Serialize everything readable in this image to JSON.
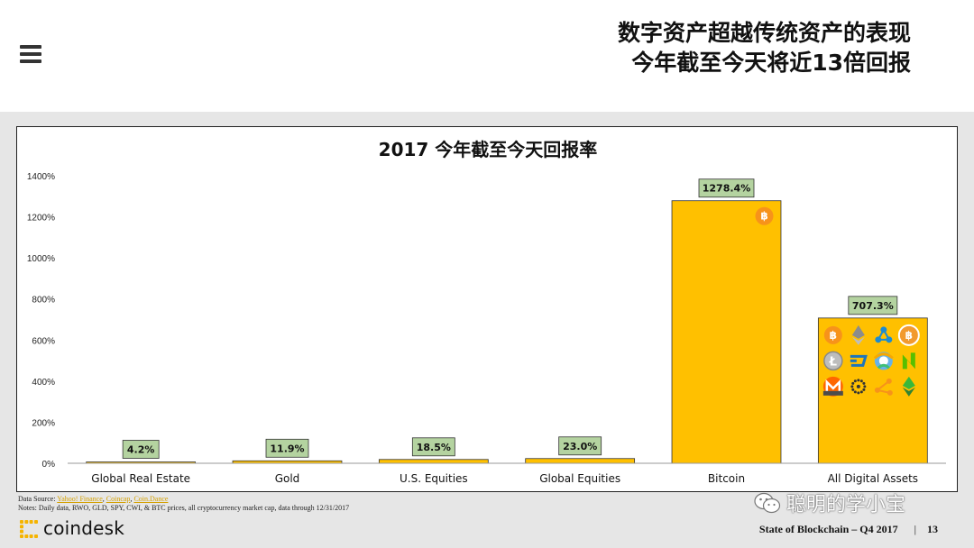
{
  "header": {
    "title_line1": "数字资产超越传统资产的表现",
    "title_line2": "今年截至今天将近13倍回报"
  },
  "chart_data": {
    "type": "bar",
    "title": "2017 今年截至今天回报率",
    "categories": [
      "Global Real Estate",
      "Gold",
      "U.S. Equities",
      "Global Equities",
      "Bitcoin",
      "All Digital Assets"
    ],
    "values": [
      4.2,
      11.9,
      18.5,
      23.0,
      1278.4,
      707.3
    ],
    "value_labels": [
      "4.2%",
      "11.9%",
      "18.5%",
      "23.0%",
      "1278.4%",
      "707.3%"
    ],
    "y_ticks": [
      "0%",
      "200%",
      "400%",
      "600%",
      "800%",
      "1000%",
      "1200%",
      "1400%"
    ],
    "ylim": [
      0,
      1400
    ],
    "xlabel": "",
    "ylabel": "",
    "grid": false,
    "colors": {
      "bar": "#ffc000",
      "label_box": "#b4d3a0"
    }
  },
  "coin_icons": [
    "bitcoin-icon",
    "ethereum-icon",
    "ripple-icon",
    "bitcoin-cash-icon",
    "litecoin-icon",
    "dash-icon",
    "nem-icon",
    "neo-icon",
    "monero-icon",
    "iota-icon",
    "bitconnect-icon",
    "ethereum-classic-icon"
  ],
  "source": {
    "prefix": "Data Source: ",
    "link1": "Yahoo! Finance",
    "link2": "Coincap",
    "link3": "Coin.Dance",
    "notes": "Notes: Daily data, RWO, GLD, SPY, CWI, & BTC prices, all cryptocurrency market cap, data through 12/31/2017"
  },
  "logo": {
    "text": "coindesk"
  },
  "watermark": {
    "text": "聪明的学小宝"
  },
  "footer": {
    "report": "State of Blockchain – Q4 2017",
    "separator": "|",
    "page": "13"
  }
}
